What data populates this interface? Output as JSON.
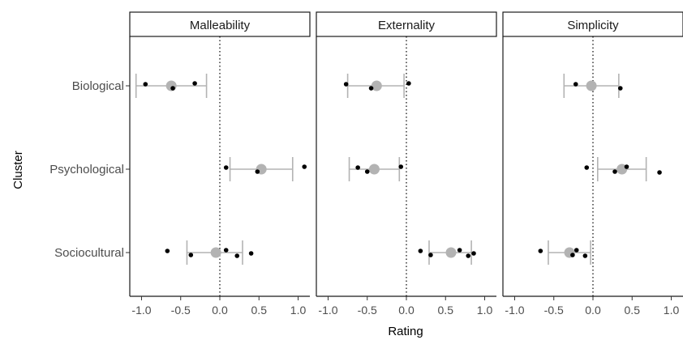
{
  "chart_data": {
    "type": "scatter",
    "xlabel": "Rating",
    "ylabel": "Cluster",
    "xlim": [
      -1.15,
      1.15
    ],
    "x_ticks": [
      "-1.0",
      "-0.5",
      "0.0",
      "0.5",
      "1.0"
    ],
    "x_tick_values": [
      -1.0,
      -0.5,
      0.0,
      0.5,
      1.0
    ],
    "categories": [
      "Biological",
      "Psychological",
      "Sociocultural"
    ],
    "reference_line_x": 0,
    "grid": false,
    "colors": {
      "mean": "#b3b3b3",
      "errorbar": "#b3b3b3",
      "point": "#000000",
      "reference": "#000000"
    },
    "panels": [
      {
        "title": "Malleability",
        "rows": [
          {
            "category": "Biological",
            "mean": -0.62,
            "ci": [
              -1.07,
              -0.17
            ],
            "points": [
              -0.95,
              -0.6,
              -0.32
            ]
          },
          {
            "category": "Psychological",
            "mean": 0.53,
            "ci": [
              0.13,
              0.93
            ],
            "points": [
              0.08,
              0.48,
              1.08
            ]
          },
          {
            "category": "Sociocultural",
            "mean": -0.05,
            "ci": [
              -0.42,
              0.29
            ],
            "points": [
              -0.67,
              -0.37,
              0.08,
              0.22,
              0.4
            ]
          }
        ]
      },
      {
        "title": "Externality",
        "rows": [
          {
            "category": "Biological",
            "mean": -0.38,
            "ci": [
              -0.75,
              -0.03
            ],
            "points": [
              -0.77,
              -0.45,
              0.03
            ]
          },
          {
            "category": "Psychological",
            "mean": -0.41,
            "ci": [
              -0.73,
              -0.09
            ],
            "points": [
              -0.62,
              -0.5,
              -0.07
            ]
          },
          {
            "category": "Sociocultural",
            "mean": 0.57,
            "ci": [
              0.29,
              0.83
            ],
            "points": [
              0.18,
              0.31,
              0.68,
              0.79,
              0.86
            ]
          }
        ]
      },
      {
        "title": "Simplicity",
        "rows": [
          {
            "category": "Biological",
            "mean": -0.02,
            "ci": [
              -0.37,
              0.33
            ],
            "points": [
              -0.22,
              0.35
            ]
          },
          {
            "category": "Psychological",
            "mean": 0.37,
            "ci": [
              0.06,
              0.68
            ],
            "points": [
              -0.08,
              0.28,
              0.43,
              0.85
            ]
          },
          {
            "category": "Sociocultural",
            "mean": -0.3,
            "ci": [
              -0.57,
              -0.03
            ],
            "points": [
              -0.67,
              -0.26,
              -0.21,
              -0.1
            ]
          }
        ]
      }
    ]
  }
}
